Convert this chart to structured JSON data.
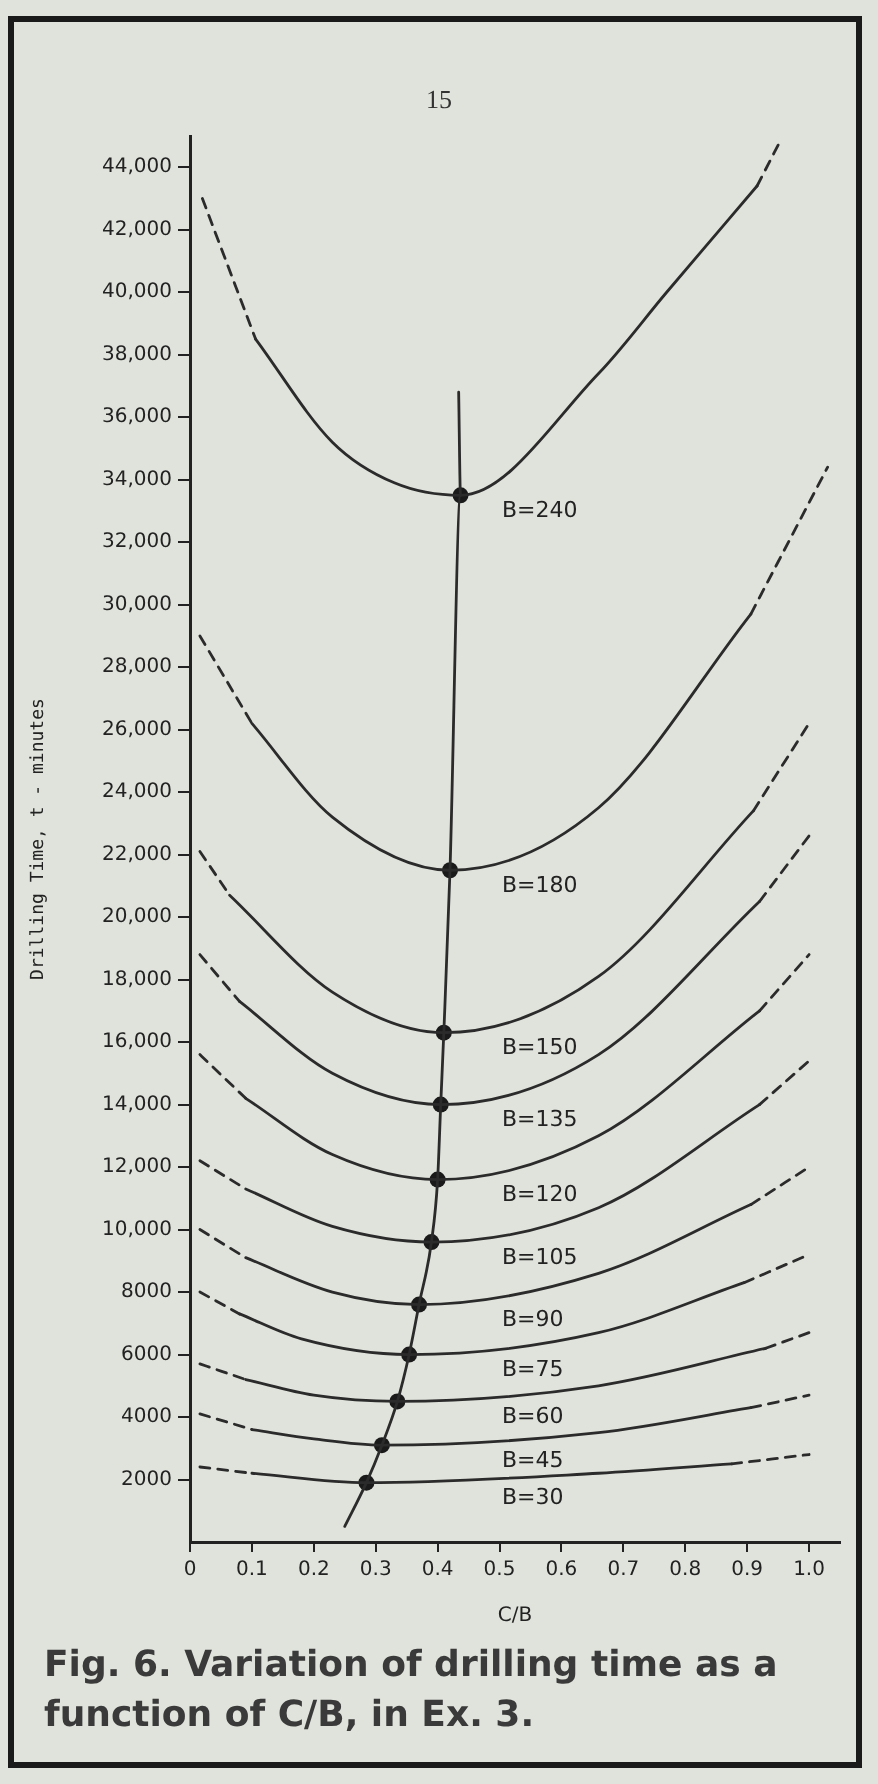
{
  "chart_data": {
    "type": "line",
    "xlabel": "C/B",
    "ylabel": "Drilling Time, t - minutes",
    "annotations": [
      "15",
      "Fig. 6. Variation of drilling time as a function of C/B, in Ex. 3."
    ],
    "xlim": [
      0,
      1.05
    ],
    "ylim": [
      0,
      45000
    ],
    "xticks": [
      0,
      0.1,
      0.2,
      0.3,
      0.4,
      0.5,
      0.6,
      0.7,
      0.8,
      0.9,
      {
        "value": 1,
        "label": "1.0"
      }
    ],
    "yticks": [
      2000,
      4000,
      6000,
      8000,
      {
        "value": 10000,
        "label": "10,000"
      },
      {
        "value": 12000,
        "label": "12,000"
      },
      {
        "value": 14000,
        "label": "14,000"
      },
      {
        "value": 16000,
        "label": "16,000"
      },
      {
        "value": 18000,
        "label": "18,000"
      },
      {
        "value": 20000,
        "label": "20,000"
      },
      {
        "value": 22000,
        "label": "22,000"
      },
      {
        "value": 24000,
        "label": "24,000"
      },
      {
        "value": 26000,
        "label": "26,000"
      },
      {
        "value": 28000,
        "label": "28,000"
      },
      {
        "value": 30000,
        "label": "30,000"
      },
      {
        "value": 32000,
        "label": "32,000"
      },
      {
        "value": 34000,
        "label": "34,000"
      },
      {
        "value": 36000,
        "label": "36,000"
      },
      {
        "value": 38000,
        "label": "38,000"
      },
      {
        "value": 40000,
        "label": "40,000"
      },
      {
        "value": 42000,
        "label": "42,000"
      },
      {
        "value": 44000,
        "label": "44,000"
      }
    ],
    "grid": false,
    "series": [
      {
        "type": "line",
        "line_style": "dashed",
        "marker": "none",
        "color": "#2b2b2b",
        "x": [
          0.02,
          0.106
        ],
        "values": [
          43000,
          38500
        ]
      },
      {
        "type": "line",
        "line_style": "solid",
        "marker": "none",
        "name": "B=240",
        "color": "#2b2b2b",
        "x": [
          0.106,
          0.23,
          0.33,
          0.437,
          0.66,
          0.77,
          0.916
        ],
        "values": [
          38500,
          35200,
          33900,
          33500,
          37400,
          40000,
          43400
        ]
      },
      {
        "type": "line",
        "line_style": "dashed",
        "marker": "none",
        "color": "#2b2b2b",
        "x": [
          0.916,
          0.955
        ],
        "values": [
          43400,
          44900
        ]
      },
      {
        "type": "line",
        "line_style": "dashed",
        "marker": "none",
        "color": "#2b2b2b",
        "x": [
          0.016,
          0.1
        ],
        "values": [
          29000,
          26200
        ]
      },
      {
        "type": "line",
        "line_style": "solid",
        "marker": "none",
        "name": "B=180",
        "color": "#2b2b2b",
        "x": [
          0.1,
          0.23,
          0.42,
          0.66,
          0.906
        ],
        "values": [
          26200,
          23200,
          21500,
          23500,
          29700
        ]
      },
      {
        "type": "line",
        "line_style": "dashed",
        "marker": "none",
        "color": "#2b2b2b",
        "x": [
          0.906,
          1.03
        ],
        "values": [
          29700,
          34400
        ]
      },
      {
        "type": "line",
        "line_style": "dashed",
        "marker": "none",
        "color": "#2b2b2b",
        "x": [
          0.016,
          0.064
        ],
        "values": [
          22100,
          20700
        ]
      },
      {
        "type": "line",
        "line_style": "solid",
        "marker": "none",
        "name": "B=150",
        "color": "#2b2b2b",
        "x": [
          0.064,
          0.23,
          0.41,
          0.66,
          0.91
        ],
        "values": [
          20700,
          17600,
          16300,
          18100,
          23400
        ]
      },
      {
        "type": "line",
        "line_style": "dashed",
        "marker": "none",
        "color": "#2b2b2b",
        "x": [
          0.91,
          1.0
        ],
        "values": [
          23400,
          26200
        ]
      },
      {
        "type": "line",
        "line_style": "dashed",
        "marker": "none",
        "color": "#2b2b2b",
        "x": [
          0.016,
          0.08
        ],
        "values": [
          18800,
          17300
        ]
      },
      {
        "type": "line",
        "line_style": "solid",
        "marker": "none",
        "name": "B=135",
        "color": "#2b2b2b",
        "x": [
          0.08,
          0.23,
          0.405,
          0.66,
          0.92
        ],
        "values": [
          17300,
          15000,
          14000,
          15600,
          20500
        ]
      },
      {
        "type": "line",
        "line_style": "dashed",
        "marker": "none",
        "color": "#2b2b2b",
        "x": [
          0.92,
          1.0
        ],
        "values": [
          20500,
          22600
        ]
      },
      {
        "type": "line",
        "line_style": "dashed",
        "marker": "none",
        "color": "#2b2b2b",
        "x": [
          0.016,
          0.09
        ],
        "values": [
          15600,
          14200
        ]
      },
      {
        "type": "line",
        "line_style": "solid",
        "marker": "none",
        "name": "B=120",
        "color": "#2b2b2b",
        "x": [
          0.09,
          0.23,
          0.4,
          0.66,
          0.92
        ],
        "values": [
          14200,
          12400,
          11600,
          13000,
          17000
        ]
      },
      {
        "type": "line",
        "line_style": "dashed",
        "marker": "none",
        "color": "#2b2b2b",
        "x": [
          0.92,
          1.0
        ],
        "values": [
          17000,
          18800
        ]
      },
      {
        "type": "line",
        "line_style": "dashed",
        "marker": "none",
        "color": "#2b2b2b",
        "x": [
          0.016,
          0.09
        ],
        "values": [
          12200,
          11300
        ]
      },
      {
        "type": "line",
        "line_style": "solid",
        "marker": "none",
        "name": "B=105",
        "color": "#2b2b2b",
        "x": [
          0.09,
          0.23,
          0.39,
          0.66,
          0.92
        ],
        "values": [
          11300,
          10100,
          9600,
          10700,
          14000
        ]
      },
      {
        "type": "line",
        "line_style": "dashed",
        "marker": "none",
        "color": "#2b2b2b",
        "x": [
          0.92,
          1.0
        ],
        "values": [
          14000,
          15400
        ]
      },
      {
        "type": "line",
        "line_style": "dashed",
        "marker": "none",
        "color": "#2b2b2b",
        "x": [
          0.016,
          0.09
        ],
        "values": [
          10000,
          9100
        ]
      },
      {
        "type": "line",
        "line_style": "solid",
        "marker": "none",
        "name": "B=90",
        "color": "#2b2b2b",
        "x": [
          0.09,
          0.23,
          0.37,
          0.66,
          0.906
        ],
        "values": [
          9100,
          8000,
          7600,
          8600,
          10800
        ]
      },
      {
        "type": "line",
        "line_style": "dashed",
        "marker": "none",
        "color": "#2b2b2b",
        "x": [
          0.906,
          1.0
        ],
        "values": [
          10800,
          12000
        ]
      },
      {
        "type": "line",
        "line_style": "dashed",
        "marker": "none",
        "color": "#2b2b2b",
        "x": [
          0.016,
          0.08
        ],
        "values": [
          8000,
          7300
        ]
      },
      {
        "type": "line",
        "line_style": "solid",
        "marker": "none",
        "name": "B=75",
        "color": "#2b2b2b",
        "x": [
          0.08,
          0.18,
          0.354,
          0.66,
          0.895
        ],
        "values": [
          7300,
          6500,
          6000,
          6700,
          8300
        ]
      },
      {
        "type": "line",
        "line_style": "dashed",
        "marker": "none",
        "color": "#2b2b2b",
        "x": [
          0.895,
          1.0
        ],
        "values": [
          8300,
          9200
        ]
      },
      {
        "type": "line",
        "line_style": "dashed",
        "marker": "none",
        "color": "#2b2b2b",
        "x": [
          0.016,
          0.09
        ],
        "values": [
          5700,
          5200
        ]
      },
      {
        "type": "line",
        "line_style": "solid",
        "marker": "none",
        "name": "B=60",
        "color": "#2b2b2b",
        "x": [
          0.09,
          0.2,
          0.335,
          0.66,
          0.93
        ],
        "values": [
          5200,
          4700,
          4500,
          5000,
          6200
        ]
      },
      {
        "type": "line",
        "line_style": "dashed",
        "marker": "none",
        "color": "#2b2b2b",
        "x": [
          0.93,
          1.0
        ],
        "values": [
          6200,
          6700
        ]
      },
      {
        "type": "line",
        "line_style": "dashed",
        "marker": "none",
        "color": "#2b2b2b",
        "x": [
          0.016,
          0.1
        ],
        "values": [
          4100,
          3600
        ]
      },
      {
        "type": "line",
        "line_style": "solid",
        "marker": "none",
        "name": "B=45",
        "color": "#2b2b2b",
        "x": [
          0.1,
          0.2,
          0.31,
          0.66,
          0.906
        ],
        "values": [
          3600,
          3300,
          3100,
          3500,
          4300
        ]
      },
      {
        "type": "line",
        "line_style": "dashed",
        "marker": "none",
        "color": "#2b2b2b",
        "x": [
          0.906,
          1.0
        ],
        "values": [
          4300,
          4700
        ]
      },
      {
        "type": "line",
        "line_style": "dashed",
        "marker": "none",
        "color": "#2b2b2b",
        "x": [
          0.016,
          0.1
        ],
        "values": [
          2400,
          2200
        ]
      },
      {
        "type": "line",
        "line_style": "solid",
        "marker": "none",
        "name": "B=30",
        "color": "#2b2b2b",
        "x": [
          0.1,
          0.285,
          0.66,
          0.875
        ],
        "values": [
          2200,
          1900,
          2200,
          2500
        ]
      },
      {
        "type": "line",
        "line_style": "dashed",
        "marker": "none",
        "color": "#2b2b2b",
        "x": [
          0.875,
          1.0
        ],
        "values": [
          2500,
          2800
        ]
      },
      {
        "type": "line",
        "line_style": "solid",
        "marker": "none",
        "color": "#2b2b2b",
        "x": [
          0.25,
          0.285,
          0.31,
          0.335,
          0.354,
          0.37,
          0.39,
          0.4,
          0.405,
          0.41,
          0.42,
          0.437,
          0.434
        ],
        "values": [
          500,
          1900,
          3100,
          4500,
          6000,
          7600,
          9600,
          11600,
          14000,
          16300,
          21500,
          33500,
          36800
        ]
      },
      {
        "type": "scatter",
        "marker": "circle",
        "color": "#1a1a1a",
        "x": [
          0.285,
          0.31,
          0.335,
          0.354,
          0.37,
          0.39,
          0.4,
          0.405,
          0.41,
          0.42,
          0.437
        ],
        "values": [
          1900,
          3100,
          4500,
          6000,
          7600,
          9600,
          11600,
          14000,
          16300,
          21500,
          33500
        ]
      }
    ]
  }
}
